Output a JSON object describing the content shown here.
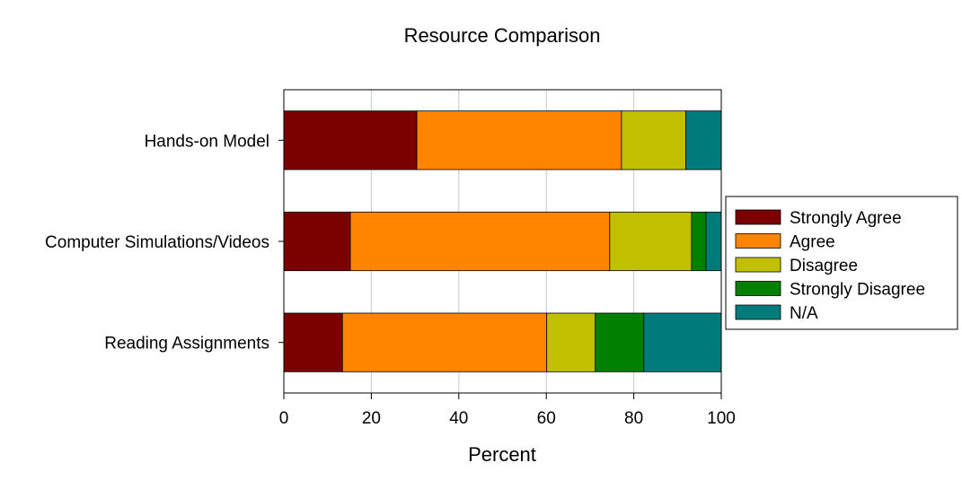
{
  "chart_data": {
    "type": "bar",
    "orientation": "horizontal",
    "stacked": true,
    "title": "Resource Comparison",
    "xlabel": "Percent",
    "ylabel": "",
    "xlim": [
      0,
      100
    ],
    "xticks": [
      "0",
      "20",
      "40",
      "60",
      "80",
      "100"
    ],
    "grid": true,
    "legend_position": "right",
    "categories": [
      "Hands-on Model",
      "Computer Simulations/Videos",
      "Reading Assignments"
    ],
    "series": [
      {
        "name": "Strongly Agree",
        "color": "#7b0000",
        "values": [
          30.4,
          15.2,
          13.4
        ]
      },
      {
        "name": "Agree",
        "color": "#ff8400",
        "values": [
          46.8,
          59.3,
          46.7
        ]
      },
      {
        "name": "Disagree",
        "color": "#c0c000",
        "values": [
          14.7,
          18.7,
          11.1
        ]
      },
      {
        "name": "Strongly Disagree",
        "color": "#008000",
        "values": [
          0,
          3.3,
          11.1
        ]
      },
      {
        "name": "N/A",
        "color": "#007b7b",
        "values": [
          8.1,
          3.5,
          17.7
        ]
      }
    ]
  }
}
